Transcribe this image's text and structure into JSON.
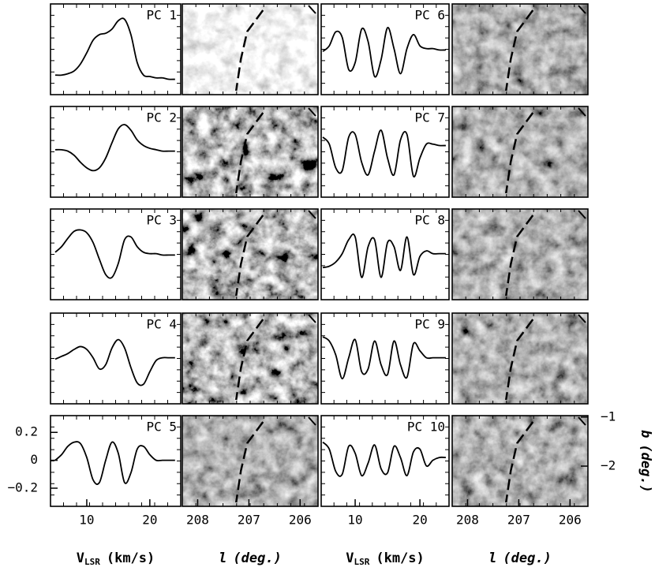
{
  "chart_data": [
    {
      "type": "line",
      "title": "PC 1",
      "x": [
        5,
        6,
        7,
        8,
        9,
        10,
        11,
        12,
        13,
        14,
        15,
        16,
        17,
        18,
        19,
        20,
        21,
        22,
        23,
        24
      ],
      "values": [
        -0.19,
        -0.19,
        -0.18,
        -0.16,
        -0.11,
        -0.03,
        0.06,
        0.1,
        0.11,
        0.14,
        0.2,
        0.21,
        0.1,
        -0.1,
        -0.19,
        -0.2,
        -0.21,
        -0.21,
        -0.22,
        -0.22
      ],
      "xlim": [
        4.25,
        24.9
      ],
      "ylim": [
        -0.33,
        0.32
      ],
      "color": "#000000"
    },
    {
      "type": "image",
      "shade": "light"
    },
    {
      "type": "line",
      "title": "PC 6",
      "x": [
        5,
        6,
        7,
        8,
        9,
        10,
        11,
        12,
        13,
        14,
        15,
        16,
        17,
        18,
        19,
        20,
        21,
        22,
        23,
        24
      ],
      "values": [
        -0.02,
        0.02,
        0.12,
        0.08,
        -0.15,
        -0.1,
        0.14,
        0.05,
        -0.2,
        -0.08,
        0.15,
        0.0,
        -0.18,
        0.0,
        0.1,
        0.02,
        0.0,
        0.0,
        -0.01,
        -0.01
      ],
      "xlim": [
        4.75,
        24.5
      ],
      "ylim": [
        -0.33,
        0.32
      ],
      "color": "#000000"
    },
    {
      "type": "image",
      "shade": "mid"
    },
    {
      "type": "line",
      "title": "PC 2",
      "x": [
        5,
        6,
        7,
        8,
        9,
        10,
        11,
        12,
        13,
        14,
        15,
        16,
        17,
        18,
        19,
        20,
        21,
        22,
        23,
        24
      ],
      "values": [
        0.01,
        0.01,
        0.0,
        -0.03,
        -0.08,
        -0.12,
        -0.14,
        -0.12,
        -0.05,
        0.06,
        0.16,
        0.19,
        0.15,
        0.08,
        0.04,
        0.02,
        0.01,
        0.0,
        0.0,
        0.0
      ],
      "xlim": [
        4.25,
        24.9
      ],
      "ylim": [
        -0.33,
        0.32
      ],
      "color": "#000000"
    },
    {
      "type": "image",
      "shade": "high"
    },
    {
      "type": "line",
      "title": "PC 7",
      "x": [
        5,
        6,
        7,
        8,
        9,
        10,
        11,
        12,
        13,
        14,
        15,
        16,
        17,
        18,
        19,
        20,
        21,
        22,
        23,
        24
      ],
      "values": [
        0.1,
        0.05,
        -0.12,
        -0.14,
        0.1,
        0.12,
        -0.08,
        -0.17,
        0.0,
        0.15,
        -0.05,
        -0.17,
        0.08,
        0.12,
        -0.18,
        -0.05,
        0.05,
        0.05,
        0.04,
        0.04
      ],
      "xlim": [
        4.75,
        24.5
      ],
      "ylim": [
        -0.33,
        0.32
      ],
      "color": "#000000"
    },
    {
      "type": "image",
      "shade": "mid"
    },
    {
      "type": "line",
      "title": "PC 3",
      "x": [
        5,
        6,
        7,
        8,
        9,
        10,
        11,
        12,
        13,
        14,
        15,
        16,
        17,
        18,
        19,
        20,
        21,
        22,
        23,
        24
      ],
      "values": [
        0.01,
        0.05,
        0.11,
        0.16,
        0.17,
        0.15,
        0.08,
        -0.04,
        -0.15,
        -0.17,
        -0.07,
        0.1,
        0.12,
        0.05,
        0.01,
        0.0,
        0.0,
        -0.01,
        -0.01,
        -0.01
      ],
      "xlim": [
        4.25,
        24.9
      ],
      "ylim": [
        -0.33,
        0.32
      ],
      "color": "#000000"
    },
    {
      "type": "image",
      "shade": "high"
    },
    {
      "type": "line",
      "title": "PC 8",
      "x": [
        5,
        6,
        7,
        8,
        9,
        10,
        11,
        12,
        13,
        14,
        15,
        16,
        17,
        18,
        19,
        20,
        21,
        22,
        23,
        24
      ],
      "values": [
        -0.1,
        -0.09,
        -0.06,
        0.0,
        0.1,
        0.12,
        -0.17,
        0.05,
        0.1,
        -0.17,
        0.08,
        0.05,
        -0.12,
        0.12,
        -0.15,
        -0.02,
        0.02,
        0.0,
        0.0,
        0.0
      ],
      "xlim": [
        4.75,
        24.5
      ],
      "ylim": [
        -0.33,
        0.32
      ],
      "color": "#000000"
    },
    {
      "type": "image",
      "shade": "mid"
    },
    {
      "type": "line",
      "title": "PC 4",
      "x": [
        5,
        6,
        7,
        8,
        9,
        10,
        11,
        12,
        13,
        14,
        15,
        16,
        17,
        18,
        19,
        20,
        21,
        22,
        23,
        24
      ],
      "values": [
        -0.01,
        0.01,
        0.03,
        0.06,
        0.08,
        0.06,
        0.0,
        -0.08,
        -0.05,
        0.07,
        0.13,
        0.07,
        -0.07,
        -0.18,
        -0.19,
        -0.1,
        -0.02,
        0.0,
        0.0,
        0.0
      ],
      "xlim": [
        4.25,
        24.9
      ],
      "ylim": [
        -0.33,
        0.32
      ],
      "color": "#000000"
    },
    {
      "type": "image",
      "shade": "high"
    },
    {
      "type": "line",
      "title": "PC 9",
      "x": [
        5,
        6,
        7,
        8,
        9,
        10,
        11,
        12,
        13,
        14,
        15,
        16,
        17,
        18,
        19,
        20,
        21,
        22,
        23,
        24
      ],
      "values": [
        0.15,
        0.12,
        0.02,
        -0.15,
        0.0,
        0.13,
        -0.1,
        -0.08,
        0.12,
        -0.05,
        -0.12,
        0.12,
        -0.05,
        -0.14,
        0.1,
        0.05,
        0.0,
        0.0,
        0.0,
        0.0
      ],
      "xlim": [
        4.75,
        24.5
      ],
      "ylim": [
        -0.33,
        0.32
      ],
      "color": "#000000"
    },
    {
      "type": "image",
      "shade": "mid"
    },
    {
      "type": "line",
      "title": "PC 5",
      "x": [
        5,
        6,
        7,
        8,
        9,
        10,
        11,
        12,
        13,
        14,
        15,
        16,
        17,
        18,
        19,
        20,
        21,
        22,
        23,
        24
      ],
      "values": [
        0.0,
        0.04,
        0.1,
        0.13,
        0.12,
        0.02,
        -0.14,
        -0.16,
        0.0,
        0.13,
        0.05,
        -0.16,
        -0.09,
        0.08,
        0.1,
        0.04,
        0.0,
        0.0,
        0.0,
        0.0
      ],
      "xlim": [
        4.25,
        24.9
      ],
      "ylim": [
        -0.33,
        0.32
      ],
      "color": "#000000",
      "xticks": [
        10,
        20
      ],
      "yticks": [
        0.2,
        0,
        {
          "value": -0.2,
          "label": "−0.2"
        }
      ],
      "xlabel": {
        "symbol": "V",
        "subscript": "LSR",
        "unit": "(km/s)"
      }
    },
    {
      "type": "image",
      "shade": "mid",
      "xlim": [
        208.3,
        205.65
      ],
      "xticks": [
        208,
        207,
        206
      ],
      "xlabel": {
        "symbol": "l",
        "unit": "(deg.)"
      }
    },
    {
      "type": "line",
      "title": "PC 10",
      "x": [
        5,
        6,
        7,
        8,
        9,
        10,
        11,
        12,
        13,
        14,
        15,
        16,
        17,
        18,
        19,
        20,
        21,
        22,
        23,
        24
      ],
      "values": [
        0.13,
        0.08,
        -0.08,
        -0.1,
        0.1,
        0.05,
        -0.11,
        -0.02,
        0.11,
        -0.06,
        -0.09,
        0.1,
        0.02,
        -0.11,
        0.06,
        0.08,
        -0.04,
        0.0,
        0.02,
        0.02
      ],
      "xlim": [
        4.75,
        24.5
      ],
      "ylim": [
        -0.33,
        0.32
      ],
      "color": "#000000",
      "xticks": [
        10,
        20
      ],
      "xlabel": {
        "symbol": "V",
        "subscript": "LSR",
        "unit": "(km/s)"
      }
    },
    {
      "type": "image",
      "shade": "mid",
      "xlim": [
        208.3,
        205.65
      ],
      "xticks": [
        208,
        207,
        206
      ],
      "xlabel": {
        "symbol": "l",
        "unit": "(deg.)"
      },
      "ylim": [
        -2.82,
        -0.97
      ],
      "yticks": [
        {
          "value": -1,
          "label": "−1"
        },
        {
          "value": -2,
          "label": "−2"
        }
      ],
      "ylabel": {
        "symbol": "b",
        "unit": "(deg.)"
      }
    }
  ]
}
